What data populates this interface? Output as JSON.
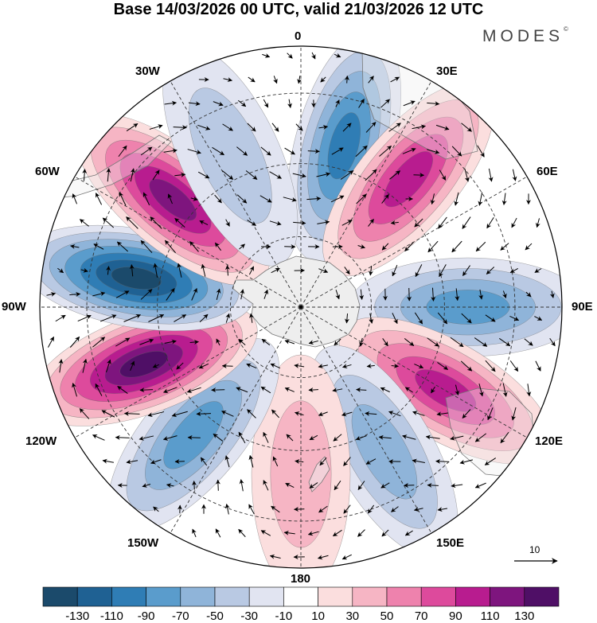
{
  "title": "Base 14/03/2026 00 UTC, valid 21/03/2026 12 UTC",
  "brand": "MODES",
  "brand_mark": "©",
  "longitude_labels": {
    "top": "0",
    "top_right": "30E",
    "upper_right": "60E",
    "right": "90E",
    "lower_right": "120E",
    "bottom_right": "150E",
    "bottom": "180",
    "bottom_left": "150W",
    "lower_left": "120W",
    "left": "90W",
    "upper_left": "60W",
    "top_left": "30W"
  },
  "reference_vector": {
    "label": "10"
  },
  "colorbar": {
    "labels": [
      "-130",
      "-110",
      "-90",
      "-70",
      "-50",
      "-30",
      "-10",
      "10",
      "30",
      "50",
      "70",
      "90",
      "110",
      "130"
    ],
    "colors": [
      "#1b4a6b",
      "#1f6193",
      "#2f7db5",
      "#5a9ccc",
      "#8fb4d9",
      "#b9c9e3",
      "#e1e4f1",
      "#ffffff",
      "#fbdede",
      "#f6b5c4",
      "#ee82ad",
      "#dd4a9c",
      "#b81c8f",
      "#7e157e",
      "#4f0f66"
    ]
  },
  "anomaly_centers": [
    {
      "name": "low near 15E",
      "lon": 15,
      "value": -90
    },
    {
      "name": "high near 40E",
      "lon": 40,
      "value": 100
    },
    {
      "name": "low near 90E",
      "lon": 90,
      "value": -80
    },
    {
      "name": "high near 120E",
      "lon": 120,
      "value": 100
    },
    {
      "name": "low near 150E",
      "lon": 150,
      "value": -50
    },
    {
      "name": "high near 180",
      "lon": 180,
      "value": 40
    },
    {
      "name": "low near 140W",
      "lon": -140,
      "value": -80
    },
    {
      "name": "high near 110W",
      "lon": -110,
      "value": 130
    },
    {
      "name": "low near 80W",
      "lon": -80,
      "value": -130
    },
    {
      "name": "high near 50W",
      "lon": -50,
      "value": 110
    },
    {
      "name": "weak low near 25W",
      "lon": -25,
      "value": -30
    }
  ]
}
